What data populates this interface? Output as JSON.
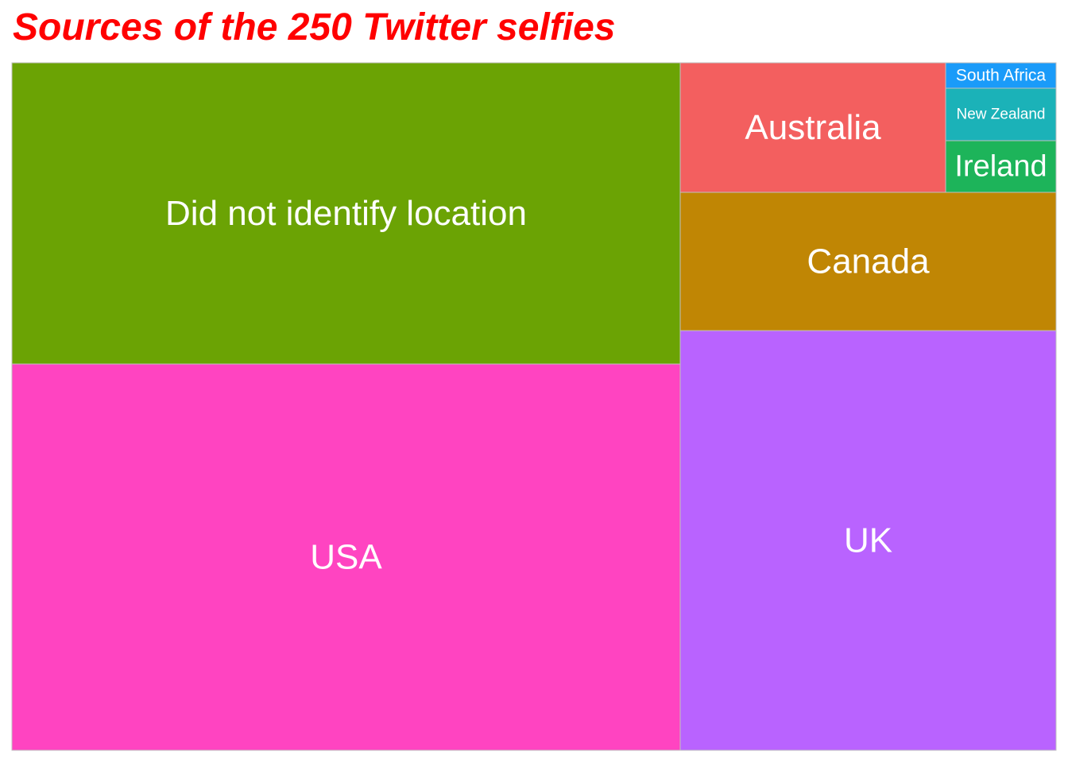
{
  "chart_data": {
    "type": "treemap",
    "title": "Sources of the 250 Twitter selfies",
    "title_color": "#ff0000",
    "total": 250,
    "categories": [
      "Did not identify location",
      "USA",
      "UK",
      "Canada",
      "Australia",
      "Ireland",
      "New Zealand",
      "South Africa"
    ],
    "values": [
      79,
      101,
      50,
      10,
      7,
      1,
      1,
      1
    ],
    "colors": [
      "#6ba304",
      "#ff44c1",
      "#b963ff",
      "#c08604",
      "#f35f5f",
      "#1db45a",
      "#1bb2b8",
      "#1a9bf9"
    ]
  }
}
